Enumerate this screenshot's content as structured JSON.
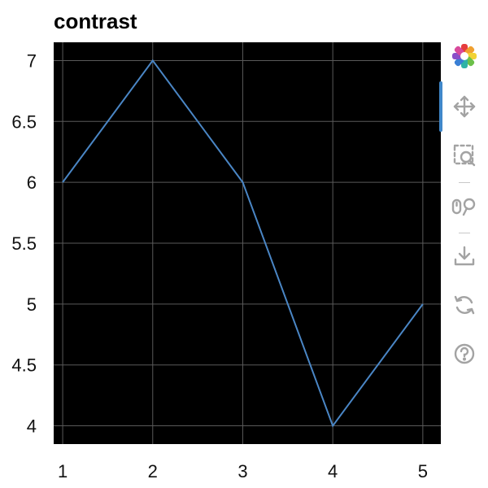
{
  "chart_data": {
    "type": "line",
    "title": "contrast",
    "x": [
      1,
      2,
      3,
      4,
      5
    ],
    "series": [
      {
        "values": [
          6,
          7,
          6,
          4,
          5
        ],
        "color": "#4a86c5"
      }
    ],
    "xlim": [
      0.9,
      5.2
    ],
    "ylim": [
      3.85,
      7.15
    ],
    "xticks": [
      1,
      2,
      3,
      4,
      5
    ],
    "xtick_labels": [
      "1",
      "2",
      "3",
      "4",
      "5"
    ],
    "yticks": [
      4,
      4.5,
      5,
      5.5,
      6,
      6.5,
      7
    ],
    "ytick_labels": [
      "4",
      "4.5",
      "5",
      "5.5",
      "6",
      "6.5",
      "7"
    ],
    "grid": true,
    "background": "#000000",
    "grid_color": "#5a5a5a"
  },
  "toolbar": {
    "tools": [
      "bokeh-logo-icon",
      "pan-icon",
      "box-zoom-icon",
      "wheel-zoom-icon",
      "save-icon",
      "reset-icon",
      "help-icon"
    ],
    "active_color": "#3f87c9",
    "icon_color": "#a3a3a3"
  }
}
